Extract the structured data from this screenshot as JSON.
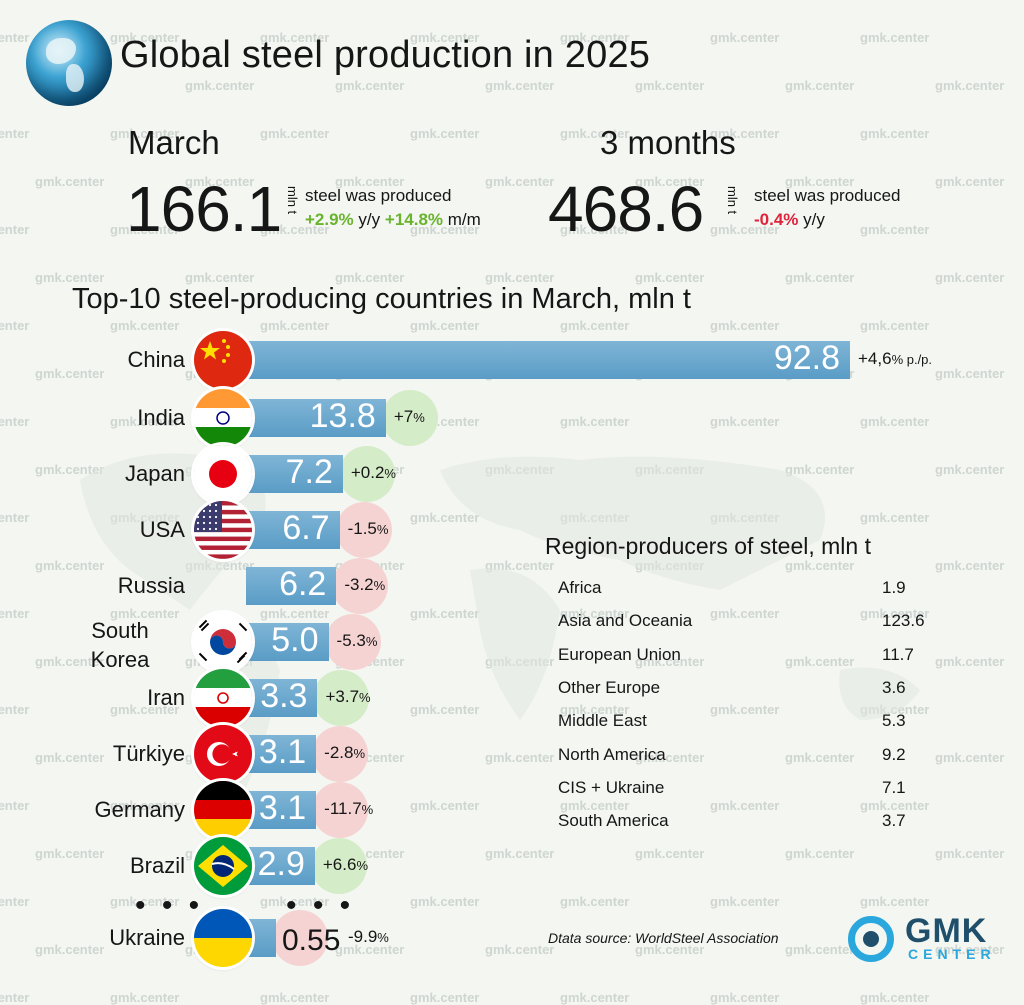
{
  "header": {
    "title": "Global steel production in 2025"
  },
  "kpis": [
    {
      "label": "March",
      "value": "166.1",
      "unit": "mln t",
      "text": "steel was produced",
      "changes": [
        {
          "value": "+2.9%",
          "suffix": "y/y",
          "tone": "pos"
        },
        {
          "value": "+14.8%",
          "suffix": "m/m",
          "tone": "pos"
        }
      ]
    },
    {
      "label": "3 months",
      "value": "468.6",
      "unit": "mln t",
      "text": "steel was produced",
      "changes": [
        {
          "value": "-0.4%",
          "suffix": "y/y",
          "tone": "neg"
        }
      ]
    }
  ],
  "chart_data": [
    {
      "type": "bar",
      "orientation": "horizontal",
      "title": "Top-10 steel-producing countries in March, mln t",
      "categories": [
        "China",
        "India",
        "Japan",
        "USA",
        "Russia",
        "South Korea",
        "Iran",
        "Türkiye",
        "Germany",
        "Brazil",
        "Ukraine"
      ],
      "values": [
        92.8,
        13.8,
        7.2,
        6.7,
        6.2,
        5.0,
        3.3,
        3.1,
        3.1,
        2.9,
        0.55
      ],
      "value_labels": [
        "92.8",
        "13.8",
        "7.2",
        "6.7",
        "6.2",
        "5.0",
        "3.3",
        "3.1",
        "3.1",
        "2.9",
        "0.55"
      ],
      "change_labels": [
        {
          "num": "+4,6",
          "unit": "% p./p."
        },
        {
          "num": "+7",
          "unit": "%"
        },
        {
          "num": "+0.2",
          "unit": "%"
        },
        {
          "num": "-1.5",
          "unit": "%"
        },
        {
          "num": "-3.2",
          "unit": "%"
        },
        {
          "num": "-5.3",
          "unit": "%"
        },
        {
          "num": "+3.7",
          "unit": "%"
        },
        {
          "num": "-2.8",
          "unit": "%"
        },
        {
          "num": "-11.7",
          "unit": "%"
        },
        {
          "num": "+6.6",
          "unit": "%"
        },
        {
          "num": "-9.9",
          "unit": "%"
        }
      ],
      "changes": [
        4.6,
        7,
        0.2,
        -1.5,
        -3.2,
        -5.3,
        3.7,
        -2.8,
        -11.7,
        6.6,
        -9.9
      ],
      "bar_color": "#6aa8cf",
      "positive_halo_color": "#d5ecc8",
      "negative_halo_color": "#f6d3d3"
    },
    {
      "type": "table",
      "title": "Region-producers of steel, mln t",
      "rows": [
        {
          "region": "Africa",
          "value": "1.9"
        },
        {
          "region": "Asia and Oceania",
          "value": "123.6"
        },
        {
          "region": "European Union",
          "value": "11.7"
        },
        {
          "region": "Other Europe",
          "value": "3.6"
        },
        {
          "region": "Middle East",
          "value": "5.3"
        },
        {
          "region": "North America",
          "value": "9.2"
        },
        {
          "region": "CIS + Ukraine",
          "value": "7.1"
        },
        {
          "region": "South America",
          "value": "3.7"
        }
      ]
    }
  ],
  "ellipsis": "• • •",
  "source": "Dtata source: WorldSteel Association",
  "brand": {
    "name": "GMK",
    "sub": "CENTER",
    "watermark": "gmk.center",
    "accent": "#2aa7dc",
    "dark": "#1f4f6b"
  },
  "flags": [
    "china-flag-icon",
    "india-flag-icon",
    "japan-flag-icon",
    "usa-flag-icon",
    "",
    "south-korea-flag-icon",
    "iran-flag-icon",
    "turkiye-flag-icon",
    "germany-flag-icon",
    "brazil-flag-icon",
    "ukraine-flag-icon"
  ]
}
